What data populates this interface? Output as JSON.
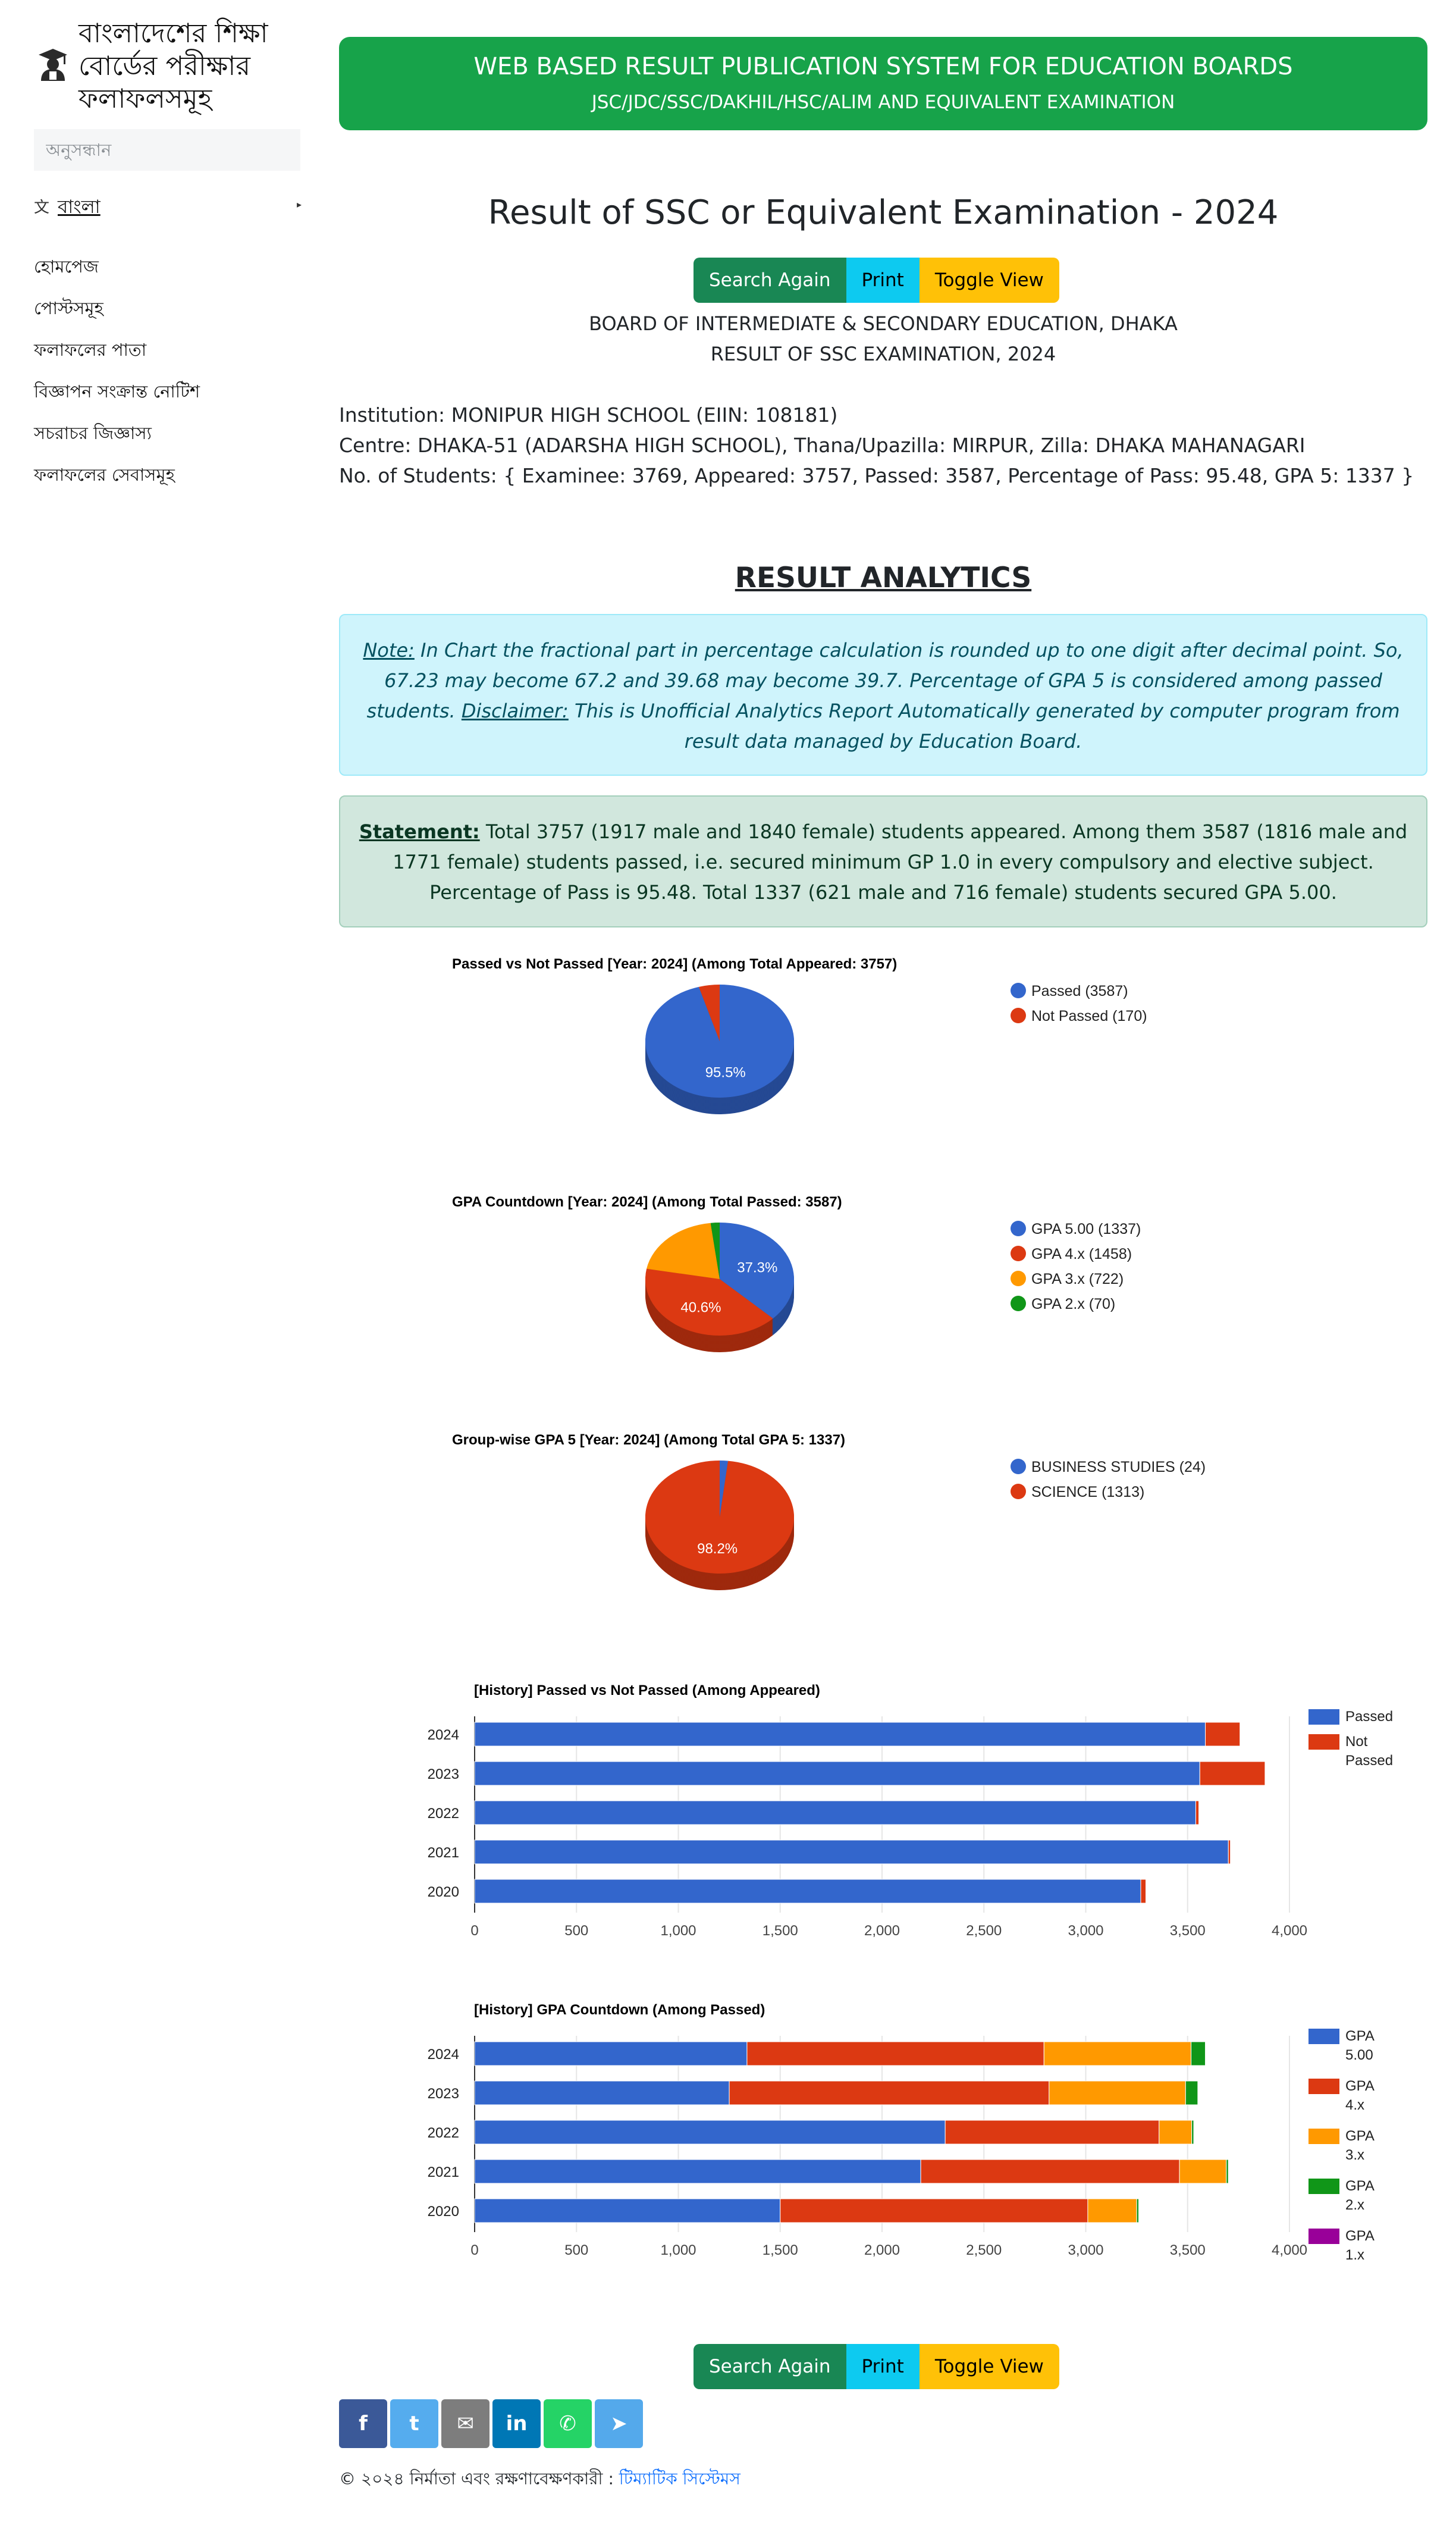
{
  "sidebar": {
    "brand_title": "বাংলাদেশের শিক্ষা বোর্ডের পরীক্ষার ফলাফলসমূহ",
    "search_placeholder": "অনুসন্ধান",
    "language_label": "বাংলা",
    "menu": [
      {
        "label": "হোমপেজ"
      },
      {
        "label": "পোস্টসমূহ"
      },
      {
        "label": "ফলাফলের পাতা"
      },
      {
        "label": "বিজ্ঞাপন সংক্রান্ত নোটিশ"
      },
      {
        "label": "সচরাচর জিজ্ঞাস্য"
      },
      {
        "label": "ফলাফলের সেবাসমূহ"
      }
    ]
  },
  "banner": {
    "title": "WEB BASED RESULT PUBLICATION SYSTEM FOR EDUCATION BOARDS",
    "subtitle": "JSC/JDC/SSC/DAKHIL/HSC/ALIM AND EQUIVALENT EXAMINATION"
  },
  "page_title": "Result of SSC or Equivalent Examination - 2024",
  "buttons": {
    "search_again": "Search Again",
    "print": "Print",
    "toggle_view": "Toggle View"
  },
  "board": {
    "line1": "BOARD OF INTERMEDIATE & SECONDARY EDUCATION, DHAKA",
    "line2": "RESULT OF SSC EXAMINATION, 2024"
  },
  "institution": {
    "institution_line": "Institution: MONIPUR HIGH SCHOOL (EIIN: 108181)",
    "centre_line": "Centre: DHAKA-51 (ADARSHA HIGH SCHOOL), Thana/Upazilla: MIRPUR, Zilla: DHAKA MAHANAGARI",
    "students_line": "No. of Students: { Examinee: 3769, Appeared: 3757, Passed: 3587, Percentage of Pass: 95.48, GPA 5: 1337 }"
  },
  "analytics": {
    "title": "RESULT ANALYTICS",
    "note_label": "Note:",
    "note_text": " In Chart the fractional part in percentage calculation is rounded up to one digit after decimal point. So, 67.23 may become 67.2 and 39.68 may become 39.7. Percentage of GPA 5 is considered among passed students.",
    "disclaimer_label": "Disclaimer:",
    "disclaimer_text": " This is Unofficial Analytics Report Automatically generated by computer program from result data managed by Education Board.",
    "statement_label": "Statement:",
    "statement_text": " Total 3757 (1917 male and 1840 female) students appeared. Among them 3587 (1816 male and 1771 female) students passed, i.e. secured minimum GP 1.0 in every compulsory and elective subject. Percentage of Pass is 95.48. Total 1337 (621 male and 716 female) students secured GPA 5.00."
  },
  "chart_data": [
    {
      "type": "pie",
      "title": "Passed vs Not Passed [Year: 2024] (Among Total Appeared: 3757)",
      "labels": [
        "Passed (3587)",
        "Not Passed (170)"
      ],
      "values": [
        3587,
        170
      ],
      "colors": [
        "#3366cc",
        "#dc3912"
      ],
      "slice_labels": [
        "95.5%",
        ""
      ],
      "legend": "right"
    },
    {
      "type": "pie",
      "title": "GPA Countdown [Year: 2024] (Among Total Passed: 3587)",
      "labels": [
        "GPA 5.00 (1337)",
        "GPA 4.x (1458)",
        "GPA 3.x (722)",
        "GPA 2.x (70)"
      ],
      "values": [
        1337,
        1458,
        722,
        70
      ],
      "colors": [
        "#3366cc",
        "#dc3912",
        "#ff9900",
        "#109618"
      ],
      "slice_labels": [
        "37.3%",
        "40.6%",
        "",
        ""
      ],
      "legend": "right"
    },
    {
      "type": "pie",
      "title": "Group-wise GPA 5 [Year: 2024] (Among Total GPA 5: 1337)",
      "labels": [
        "BUSINESS STUDIES (24)",
        "SCIENCE (1313)"
      ],
      "values": [
        24,
        1313
      ],
      "colors": [
        "#3366cc",
        "#dc3912"
      ],
      "slice_labels": [
        "",
        "98.2%"
      ],
      "legend": "right"
    },
    {
      "type": "bar",
      "title": "[History] Passed vs Not Passed (Among Appeared)",
      "orientation": "horizontal",
      "stacked": true,
      "categories": [
        "2024",
        "2023",
        "2022",
        "2021",
        "2020"
      ],
      "series": [
        {
          "name": "Passed",
          "color": "#3366cc",
          "values": [
            3587,
            3560,
            3540,
            3700,
            3270
          ]
        },
        {
          "name": "Not Passed",
          "color": "#dc3912",
          "values": [
            170,
            320,
            15,
            10,
            25
          ]
        }
      ],
      "xlim": [
        0,
        4000
      ],
      "xticks": [
        "0",
        "500",
        "1,000",
        "1,500",
        "2,000",
        "2,500",
        "3,000",
        "3,500",
        "4,000"
      ],
      "legend": "right"
    },
    {
      "type": "bar",
      "title": "[History] GPA Countdown (Among Passed)",
      "orientation": "horizontal",
      "stacked": true,
      "categories": [
        "2024",
        "2023",
        "2022",
        "2021",
        "2020"
      ],
      "series": [
        {
          "name": "GPA 5.00",
          "color": "#3366cc",
          "values": [
            1337,
            1250,
            2310,
            2190,
            1500
          ]
        },
        {
          "name": "GPA 4.x",
          "color": "#dc3912",
          "values": [
            1458,
            1570,
            1050,
            1270,
            1510
          ]
        },
        {
          "name": "GPA 3.x",
          "color": "#ff9900",
          "values": [
            722,
            670,
            160,
            230,
            240
          ]
        },
        {
          "name": "GPA 2.x",
          "color": "#109618",
          "values": [
            70,
            60,
            10,
            10,
            10
          ]
        },
        {
          "name": "GPA 1.x",
          "color": "#990099",
          "values": [
            0,
            0,
            0,
            0,
            0
          ]
        }
      ],
      "xlim": [
        0,
        4000
      ],
      "xticks": [
        "0",
        "500",
        "1,000",
        "1,500",
        "2,000",
        "2,500",
        "3,000",
        "3,500",
        "4,000"
      ],
      "legend": "right"
    }
  ],
  "footer": {
    "social": [
      {
        "name": "facebook",
        "glyph": "f",
        "color": "#3b5998"
      },
      {
        "name": "twitter",
        "glyph": "t",
        "color": "#55acee"
      },
      {
        "name": "email",
        "glyph": "✉",
        "color": "#7d7d7d"
      },
      {
        "name": "linkedin",
        "glyph": "in",
        "color": "#0077b5"
      },
      {
        "name": "whatsapp",
        "glyph": "✆",
        "color": "#25d366"
      },
      {
        "name": "telegram",
        "glyph": "➤",
        "color": "#54a9eb"
      }
    ],
    "copyright_prefix": "© ২০২৪ নির্মাতা এবং রক্ষণাবেক্ষণকারী : ",
    "copyright_link": "টিম্যাটিক সিস্টেমস"
  },
  "colors": {
    "banner": "#17a34a",
    "note_bg": "#cff4fc",
    "statement_bg": "#d1e7dd"
  }
}
